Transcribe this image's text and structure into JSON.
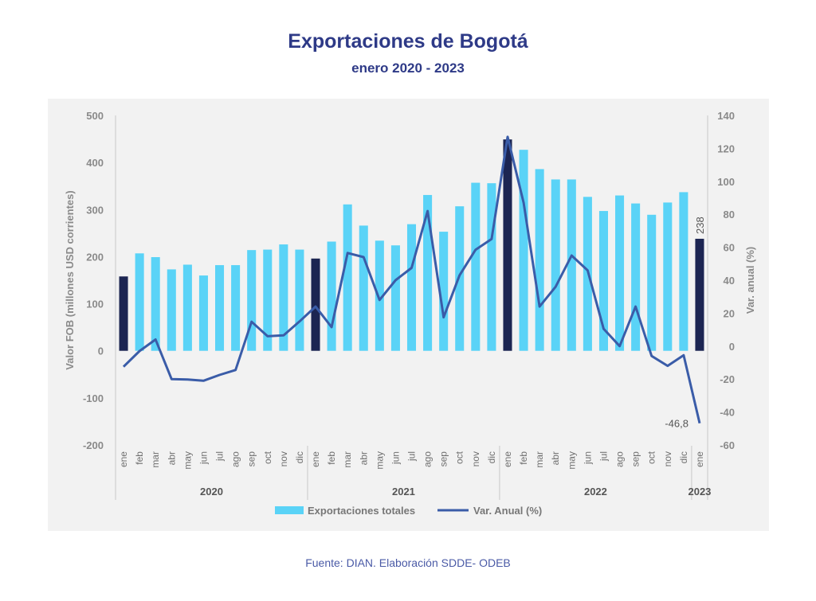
{
  "header": {
    "title": "Exportaciones de Bogotá",
    "subtitle": "enero 2020 - 2023"
  },
  "footer": {
    "source": "Fuente: DIAN. Elaboración SDDE- ODEB"
  },
  "colors": {
    "bar": "#5ad3f7",
    "bar_highlight": "#1c2552",
    "line": "#3a5ca8",
    "title": "#2e3a87"
  },
  "chart_data": {
    "type": "bar+line",
    "title": "Exportaciones de Bogotá",
    "subtitle": "enero 2020 - 2023",
    "ylabel_left": "Valor FOB (millones USD corrientes)",
    "ylabel_right": "Var. anual (%)",
    "ylim_left": [
      -200,
      500
    ],
    "ylim_right": [
      -60,
      140
    ],
    "yticks_left": [
      "500",
      "400",
      "300",
      "200",
      "100",
      "0",
      "-100",
      "-200"
    ],
    "yticks_left_values": [
      500,
      400,
      300,
      200,
      100,
      0,
      -100,
      -200
    ],
    "yticks_right": [
      "140",
      "120",
      "100",
      "80",
      "60",
      "40",
      "20",
      "0",
      "-20",
      "-40",
      "-60"
    ],
    "yticks_right_values": [
      140,
      120,
      100,
      80,
      60,
      40,
      20,
      0,
      -20,
      -40,
      -60
    ],
    "categories": [
      "ene",
      "feb",
      "mar",
      "abr",
      "may",
      "jun",
      "jul",
      "ago",
      "sep",
      "oct",
      "nov",
      "dic",
      "ene",
      "feb",
      "mar",
      "abr",
      "may",
      "jun",
      "jul",
      "ago",
      "sep",
      "oct",
      "nov",
      "dic",
      "ene",
      "feb",
      "mar",
      "abr",
      "may",
      "jun",
      "jul",
      "ago",
      "sep",
      "oct",
      "nov",
      "dic",
      "ene"
    ],
    "years": [
      {
        "label": "2020",
        "start": 0,
        "end": 11
      },
      {
        "label": "2021",
        "start": 12,
        "end": 23
      },
      {
        "label": "2022",
        "start": 24,
        "end": 35
      },
      {
        "label": "2023",
        "start": 36,
        "end": 36
      }
    ],
    "highlight_indices": [
      0,
      12,
      24,
      36
    ],
    "series": [
      {
        "name": "Exportaciones totales",
        "type": "bar",
        "axis": "left",
        "values": [
          158,
          207,
          199,
          173,
          183,
          160,
          182,
          182,
          214,
          215,
          226,
          215,
          196,
          232,
          311,
          266,
          234,
          224,
          269,
          331,
          253,
          307,
          357,
          356,
          449,
          427,
          386,
          364,
          364,
          327,
          297,
          330,
          313,
          289,
          315,
          337,
          238
        ]
      },
      {
        "name": "Var. Anual (%)",
        "type": "line",
        "axis": "right",
        "values": [
          -12.5,
          -3,
          4,
          -20,
          -20.3,
          -21,
          -17.5,
          -14.5,
          14.8,
          6,
          6.5,
          15,
          24,
          11.5,
          56.5,
          54,
          28,
          40,
          47.5,
          82,
          17.5,
          43,
          58.5,
          65,
          127,
          87,
          24,
          36,
          55,
          46,
          10.5,
          0,
          24,
          -6,
          -12,
          -5.5,
          -46.8
        ]
      }
    ],
    "annotations": [
      {
        "index": 36,
        "series": "Exportaciones totales",
        "text": "238"
      },
      {
        "index": 36,
        "series": "Var. Anual (%)",
        "text": "-46,8"
      }
    ],
    "legend": [
      "Exportaciones totales",
      "Var. Anual (%)"
    ]
  }
}
